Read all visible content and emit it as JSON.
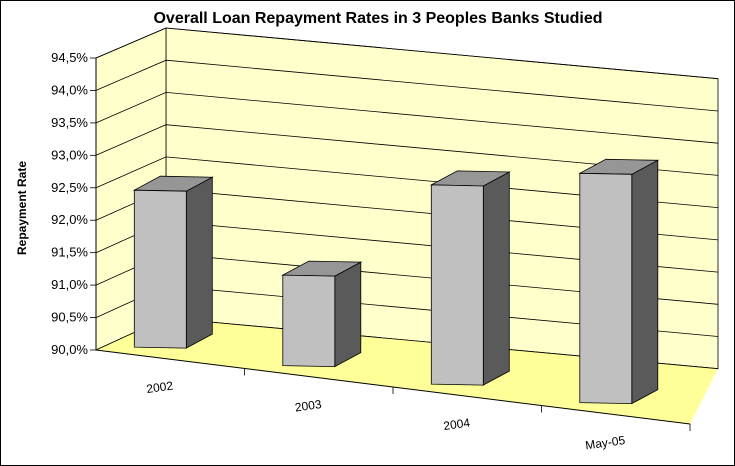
{
  "chart_data": {
    "type": "bar",
    "title": "Overall Loan Repayment Rates in 3 Peoples Banks Studied",
    "ylabel": "Repayment Rate",
    "xlabel": "",
    "categories": [
      "2002",
      "2003",
      "2004",
      "May-05"
    ],
    "values": [
      92.6,
      91.5,
      93.3,
      93.8
    ],
    "ylim": [
      90.0,
      94.5
    ],
    "yticks": [
      "90,0%",
      "90,5%",
      "91,0%",
      "91,5%",
      "92,0%",
      "92,5%",
      "93,0%",
      "93,5%",
      "94,0%",
      "94,5%"
    ],
    "grid": true,
    "legend": "none",
    "three_d": true,
    "colors": {
      "wall": "#ffffcc",
      "floor": "#ffff99",
      "bar_front": "#c0c0c0",
      "bar_top": "#969696",
      "bar_side": "#5a5a5a",
      "grid": "#000000"
    }
  }
}
